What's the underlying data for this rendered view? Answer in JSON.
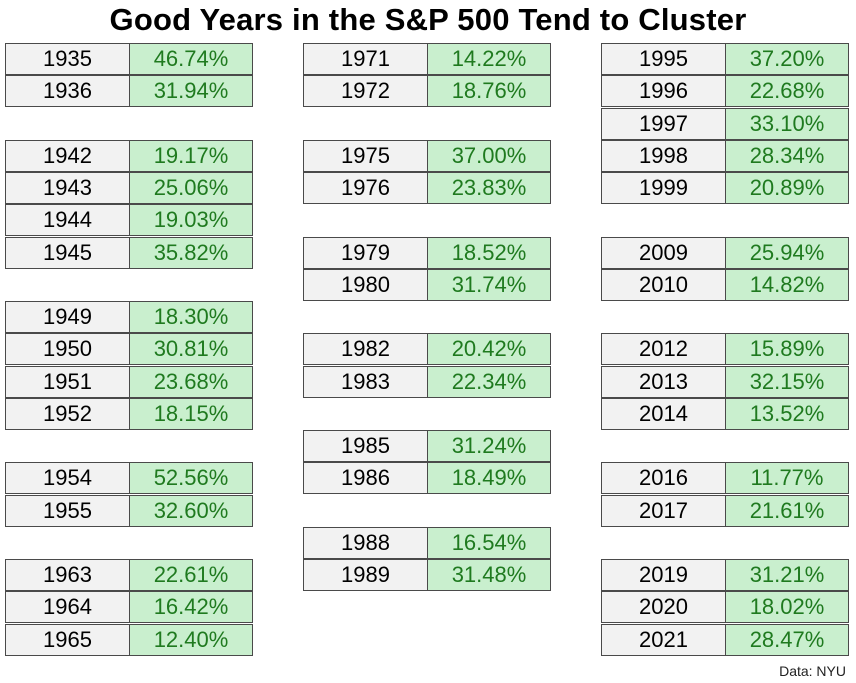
{
  "title": "Good Years in the S&P 500 Tend to Cluster",
  "credit": "Data: NYU",
  "colors": {
    "year_bg": "#f2f2f2",
    "return_bg": "#c9efce",
    "return_text": "#1f7a1f",
    "border": "#4a4a4a"
  },
  "chart_data": {
    "type": "table",
    "title": "Good Years in the S&P 500 Tend to Cluster",
    "columns": [
      [
        {
          "year": "1935",
          "return": "46.74%",
          "row": 0
        },
        {
          "year": "1936",
          "return": "31.94%",
          "row": 1
        },
        {
          "year": "1942",
          "return": "19.17%",
          "row": 3
        },
        {
          "year": "1943",
          "return": "25.06%",
          "row": 4
        },
        {
          "year": "1944",
          "return": "19.03%",
          "row": 5
        },
        {
          "year": "1945",
          "return": "35.82%",
          "row": 6
        },
        {
          "year": "1949",
          "return": "18.30%",
          "row": 8
        },
        {
          "year": "1950",
          "return": "30.81%",
          "row": 9
        },
        {
          "year": "1951",
          "return": "23.68%",
          "row": 10
        },
        {
          "year": "1952",
          "return": "18.15%",
          "row": 11
        },
        {
          "year": "1954",
          "return": "52.56%",
          "row": 13
        },
        {
          "year": "1955",
          "return": "32.60%",
          "row": 14
        },
        {
          "year": "1963",
          "return": "22.61%",
          "row": 16
        },
        {
          "year": "1964",
          "return": "16.42%",
          "row": 17
        },
        {
          "year": "1965",
          "return": "12.40%",
          "row": 18
        }
      ],
      [
        {
          "year": "1971",
          "return": "14.22%",
          "row": 0
        },
        {
          "year": "1972",
          "return": "18.76%",
          "row": 1
        },
        {
          "year": "1975",
          "return": "37.00%",
          "row": 3
        },
        {
          "year": "1976",
          "return": "23.83%",
          "row": 4
        },
        {
          "year": "1979",
          "return": "18.52%",
          "row": 6
        },
        {
          "year": "1980",
          "return": "31.74%",
          "row": 7
        },
        {
          "year": "1982",
          "return": "20.42%",
          "row": 9
        },
        {
          "year": "1983",
          "return": "22.34%",
          "row": 10
        },
        {
          "year": "1985",
          "return": "31.24%",
          "row": 12
        },
        {
          "year": "1986",
          "return": "18.49%",
          "row": 13
        },
        {
          "year": "1988",
          "return": "16.54%",
          "row": 15
        },
        {
          "year": "1989",
          "return": "31.48%",
          "row": 16
        }
      ],
      [
        {
          "year": "1995",
          "return": "37.20%",
          "row": 0
        },
        {
          "year": "1996",
          "return": "22.68%",
          "row": 1
        },
        {
          "year": "1997",
          "return": "33.10%",
          "row": 2
        },
        {
          "year": "1998",
          "return": "28.34%",
          "row": 3
        },
        {
          "year": "1999",
          "return": "20.89%",
          "row": 4
        },
        {
          "year": "2009",
          "return": "25.94%",
          "row": 6
        },
        {
          "year": "2010",
          "return": "14.82%",
          "row": 7
        },
        {
          "year": "2012",
          "return": "15.89%",
          "row": 9
        },
        {
          "year": "2013",
          "return": "32.15%",
          "row": 10
        },
        {
          "year": "2014",
          "return": "13.52%",
          "row": 11
        },
        {
          "year": "2016",
          "return": "11.77%",
          "row": 13
        },
        {
          "year": "2017",
          "return": "21.61%",
          "row": 14
        },
        {
          "year": "2019",
          "return": "31.21%",
          "row": 16
        },
        {
          "year": "2020",
          "return": "18.02%",
          "row": 17
        },
        {
          "year": "2021",
          "return": "28.47%",
          "row": 18
        }
      ]
    ]
  }
}
